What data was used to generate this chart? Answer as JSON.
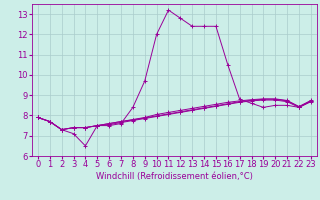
{
  "xlabel": "Windchill (Refroidissement éolien,°C)",
  "background_color": "#cceee8",
  "grid_color": "#aacccc",
  "line_color": "#990099",
  "marker": "+",
  "xlim": [
    -0.5,
    23.5
  ],
  "ylim": [
    6,
    13.5
  ],
  "xticks": [
    0,
    1,
    2,
    3,
    4,
    5,
    6,
    7,
    8,
    9,
    10,
    11,
    12,
    13,
    14,
    15,
    16,
    17,
    18,
    19,
    20,
    21,
    22,
    23
  ],
  "yticks": [
    6,
    7,
    8,
    9,
    10,
    11,
    12,
    13
  ],
  "series": [
    [
      7.9,
      7.7,
      7.3,
      7.1,
      6.5,
      7.5,
      7.5,
      7.6,
      8.4,
      9.7,
      12.0,
      13.2,
      12.8,
      12.4,
      12.4,
      12.4,
      10.5,
      8.8,
      8.6,
      8.4,
      8.5,
      8.5,
      8.4,
      8.7
    ],
    [
      7.9,
      7.7,
      7.3,
      7.4,
      7.4,
      7.5,
      7.55,
      7.65,
      7.75,
      7.85,
      7.95,
      8.05,
      8.15,
      8.25,
      8.35,
      8.45,
      8.55,
      8.65,
      8.72,
      8.76,
      8.76,
      8.68,
      8.4,
      8.68
    ],
    [
      7.9,
      7.7,
      7.3,
      7.4,
      7.4,
      7.5,
      7.6,
      7.7,
      7.78,
      7.88,
      7.98,
      8.08,
      8.18,
      8.28,
      8.38,
      8.48,
      8.58,
      8.68,
      8.75,
      8.8,
      8.8,
      8.72,
      8.43,
      8.72
    ],
    [
      7.9,
      7.7,
      7.3,
      7.4,
      7.4,
      7.5,
      7.6,
      7.7,
      7.8,
      7.9,
      8.05,
      8.15,
      8.25,
      8.35,
      8.45,
      8.55,
      8.65,
      8.72,
      8.78,
      8.82,
      8.82,
      8.74,
      8.44,
      8.74
    ]
  ],
  "xlabel_fontsize": 6,
  "tick_fontsize": 6,
  "linewidth": 0.7,
  "markersize": 2.5,
  "markeredgewidth": 0.7
}
